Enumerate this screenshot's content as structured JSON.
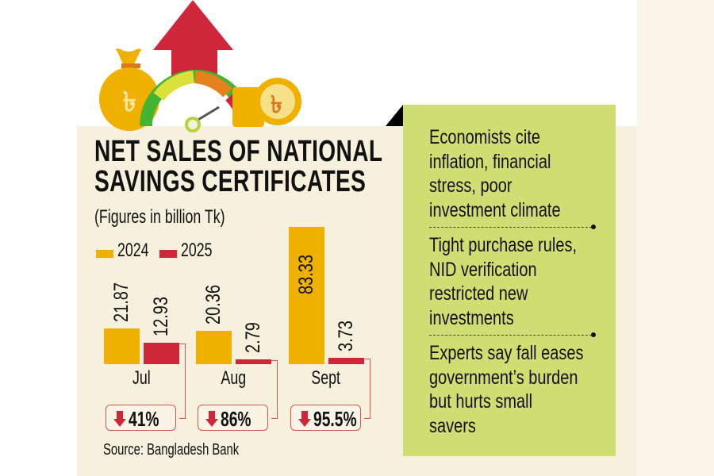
{
  "title_lines": [
    "NET SALES OF NATIONAL",
    "SAVINGS CERTIFICATES"
  ],
  "subtitle": "(Figures in billion Tk)",
  "source": "Source: Bangladesh Bank",
  "colors": {
    "y2024": "#f0b000",
    "y2025": "#d0263a",
    "panel": "#f6f0dd",
    "box": "#cfdd72"
  },
  "chart_data": {
    "type": "bar",
    "title": "NET SALES OF NATIONAL SAVINGS CERTIFICATES",
    "ylabel": "billion Tk",
    "categories": [
      "Jul",
      "Aug",
      "Sept"
    ],
    "series": [
      {
        "name": "2024",
        "values": [
          21.87,
          20.36,
          83.33
        ],
        "labels": [
          "21.87",
          "20.36",
          "83.33"
        ]
      },
      {
        "name": "2025",
        "values": [
          12.93,
          2.79,
          3.73
        ],
        "labels": [
          "12.93",
          "2.79",
          "3.73"
        ]
      }
    ],
    "changes": [
      "41%",
      "86%",
      "95.5%"
    ],
    "legend": "top-left"
  },
  "points": [
    [
      "Economists cite",
      "inflation, financial",
      "stress, poor",
      "investment climate"
    ],
    [
      "Tight purchase rules,",
      "NID verification",
      "restricted new",
      "investments"
    ],
    [
      "Experts say fall eases",
      "government’s burden",
      "but hurts small",
      "savers"
    ]
  ],
  "icons": [
    "money-bag-icon",
    "up-arrow-icon",
    "gauge-icon",
    "coin-stack-icon"
  ]
}
